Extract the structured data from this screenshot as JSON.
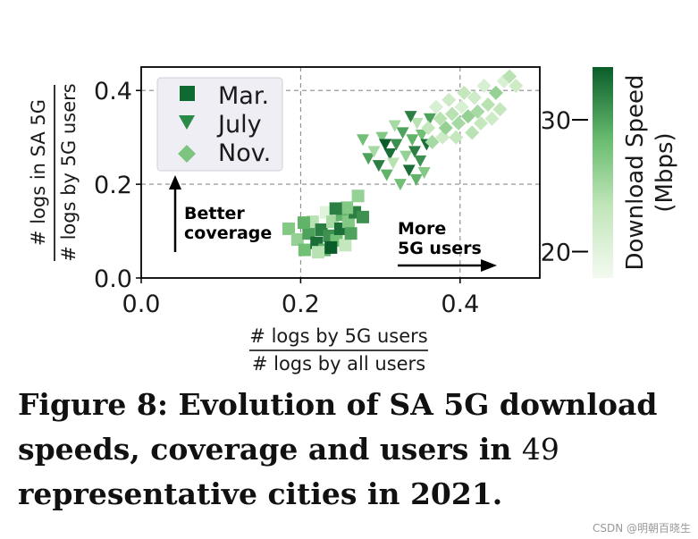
{
  "chart_data": {
    "type": "scatter",
    "xlabel_numerator": "# logs by 5G users",
    "xlabel_denominator": "# logs by all users",
    "ylabel_numerator": "# logs in SA 5G",
    "ylabel_denominator": "# logs by 5G users",
    "xlim": [
      0.0,
      0.5
    ],
    "ylim": [
      0.0,
      0.45
    ],
    "xticks": [
      0.0,
      0.2,
      0.4
    ],
    "xtick_labels": [
      "0.0",
      "0.2",
      "0.4"
    ],
    "yticks": [
      0.0,
      0.2,
      0.4
    ],
    "ytick_labels": [
      "0.0",
      "0.2",
      "0.4"
    ],
    "grid": true,
    "colorbar": {
      "label_line1": "Download Speed",
      "label_line2": "(Mbps)",
      "range": [
        18,
        34
      ],
      "ticks": [
        20,
        30
      ],
      "tick_labels": [
        "20",
        "30"
      ],
      "color_low": "#f3faf0",
      "color_high": "#0a5d2a"
    },
    "legend": {
      "position": "top-left",
      "entries": [
        {
          "label": "Mar.",
          "marker": "square"
        },
        {
          "label": "July",
          "marker": "triangle-down"
        },
        {
          "label": "Nov.",
          "marker": "diamond"
        }
      ]
    },
    "annotations": [
      {
        "line1": "Better",
        "line2": "coverage",
        "arrow": "up"
      },
      {
        "line1": "More",
        "line2": "5G users",
        "arrow": "right"
      }
    ],
    "series": [
      {
        "name": "Mar.",
        "marker": "square",
        "points": [
          {
            "x": 0.185,
            "y": 0.105,
            "c": 27
          },
          {
            "x": 0.196,
            "y": 0.082,
            "c": 26
          },
          {
            "x": 0.205,
            "y": 0.06,
            "c": 28
          },
          {
            "x": 0.21,
            "y": 0.095,
            "c": 30
          },
          {
            "x": 0.215,
            "y": 0.12,
            "c": 24
          },
          {
            "x": 0.22,
            "y": 0.075,
            "c": 33
          },
          {
            "x": 0.226,
            "y": 0.103,
            "c": 32
          },
          {
            "x": 0.23,
            "y": 0.06,
            "c": 29
          },
          {
            "x": 0.232,
            "y": 0.14,
            "c": 20
          },
          {
            "x": 0.236,
            "y": 0.09,
            "c": 31
          },
          {
            "x": 0.24,
            "y": 0.12,
            "c": 25
          },
          {
            "x": 0.245,
            "y": 0.08,
            "c": 28
          },
          {
            "x": 0.25,
            "y": 0.105,
            "c": 33
          },
          {
            "x": 0.252,
            "y": 0.135,
            "c": 29
          },
          {
            "x": 0.256,
            "y": 0.07,
            "c": 23
          },
          {
            "x": 0.26,
            "y": 0.12,
            "c": 27
          },
          {
            "x": 0.263,
            "y": 0.095,
            "c": 30
          },
          {
            "x": 0.268,
            "y": 0.14,
            "c": 32
          },
          {
            "x": 0.272,
            "y": 0.175,
            "c": 26
          },
          {
            "x": 0.278,
            "y": 0.13,
            "c": 31
          },
          {
            "x": 0.204,
            "y": 0.118,
            "c": 29
          },
          {
            "x": 0.222,
            "y": 0.055,
            "c": 24
          },
          {
            "x": 0.238,
            "y": 0.065,
            "c": 34
          },
          {
            "x": 0.258,
            "y": 0.15,
            "c": 27
          },
          {
            "x": 0.244,
            "y": 0.148,
            "c": 32
          }
        ]
      },
      {
        "name": "July",
        "marker": "triangle-down",
        "points": [
          {
            "x": 0.278,
            "y": 0.295,
            "c": 28
          },
          {
            "x": 0.285,
            "y": 0.255,
            "c": 30
          },
          {
            "x": 0.292,
            "y": 0.27,
            "c": 25
          },
          {
            "x": 0.298,
            "y": 0.24,
            "c": 32
          },
          {
            "x": 0.302,
            "y": 0.3,
            "c": 27
          },
          {
            "x": 0.308,
            "y": 0.22,
            "c": 29
          },
          {
            "x": 0.312,
            "y": 0.265,
            "c": 33
          },
          {
            "x": 0.316,
            "y": 0.245,
            "c": 24
          },
          {
            "x": 0.32,
            "y": 0.285,
            "c": 31
          },
          {
            "x": 0.325,
            "y": 0.2,
            "c": 28
          },
          {
            "x": 0.328,
            "y": 0.31,
            "c": 30
          },
          {
            "x": 0.332,
            "y": 0.26,
            "c": 26
          },
          {
            "x": 0.336,
            "y": 0.23,
            "c": 33
          },
          {
            "x": 0.34,
            "y": 0.295,
            "c": 29
          },
          {
            "x": 0.343,
            "y": 0.27,
            "c": 32
          },
          {
            "x": 0.346,
            "y": 0.33,
            "c": 24
          },
          {
            "x": 0.35,
            "y": 0.25,
            "c": 31
          },
          {
            "x": 0.352,
            "y": 0.305,
            "c": 28
          },
          {
            "x": 0.355,
            "y": 0.225,
            "c": 27
          },
          {
            "x": 0.358,
            "y": 0.285,
            "c": 33
          },
          {
            "x": 0.362,
            "y": 0.34,
            "c": 30
          },
          {
            "x": 0.318,
            "y": 0.325,
            "c": 25
          },
          {
            "x": 0.338,
            "y": 0.345,
            "c": 32
          },
          {
            "x": 0.345,
            "y": 0.21,
            "c": 29
          },
          {
            "x": 0.306,
            "y": 0.285,
            "c": 34
          }
        ]
      },
      {
        "name": "Nov.",
        "marker": "diamond",
        "points": [
          {
            "x": 0.36,
            "y": 0.32,
            "c": 23
          },
          {
            "x": 0.365,
            "y": 0.29,
            "c": 25
          },
          {
            "x": 0.37,
            "y": 0.365,
            "c": 21
          },
          {
            "x": 0.375,
            "y": 0.34,
            "c": 24
          },
          {
            "x": 0.378,
            "y": 0.3,
            "c": 22
          },
          {
            "x": 0.382,
            "y": 0.32,
            "c": 26
          },
          {
            "x": 0.386,
            "y": 0.38,
            "c": 22
          },
          {
            "x": 0.39,
            "y": 0.35,
            "c": 24
          },
          {
            "x": 0.395,
            "y": 0.3,
            "c": 23
          },
          {
            "x": 0.398,
            "y": 0.33,
            "c": 25
          },
          {
            "x": 0.402,
            "y": 0.365,
            "c": 21
          },
          {
            "x": 0.405,
            "y": 0.395,
            "c": 23
          },
          {
            "x": 0.41,
            "y": 0.345,
            "c": 26
          },
          {
            "x": 0.415,
            "y": 0.31,
            "c": 24
          },
          {
            "x": 0.418,
            "y": 0.385,
            "c": 22
          },
          {
            "x": 0.422,
            "y": 0.355,
            "c": 25
          },
          {
            "x": 0.426,
            "y": 0.33,
            "c": 23
          },
          {
            "x": 0.43,
            "y": 0.41,
            "c": 21
          },
          {
            "x": 0.435,
            "y": 0.37,
            "c": 24
          },
          {
            "x": 0.44,
            "y": 0.34,
            "c": 22
          },
          {
            "x": 0.445,
            "y": 0.395,
            "c": 26
          },
          {
            "x": 0.45,
            "y": 0.36,
            "c": 23
          },
          {
            "x": 0.455,
            "y": 0.42,
            "c": 21
          },
          {
            "x": 0.462,
            "y": 0.43,
            "c": 24
          },
          {
            "x": 0.47,
            "y": 0.41,
            "c": 22
          }
        ]
      }
    ]
  },
  "caption": {
    "part1": "Figure 8: Evolution of SA 5G download speeds, coverage and users in ",
    "number": "49",
    "part2": " representative cities in 2021."
  },
  "watermark": "CSDN @明朝百晓生"
}
